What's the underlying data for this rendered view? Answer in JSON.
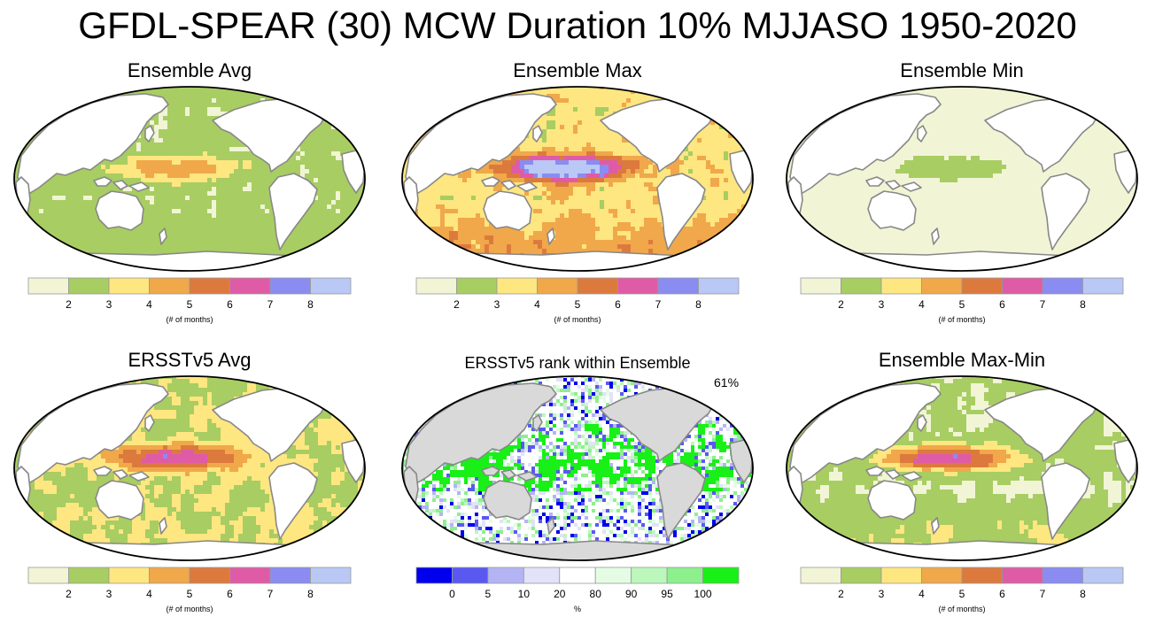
{
  "title": "GFDL-SPEAR (30) MCW Duration 10% MJJASO 1950-2020",
  "colors": {
    "duration": [
      "#f1f5d6",
      "#a8cd62",
      "#fee680",
      "#f0a84a",
      "#dc7a3e",
      "#e05ba6",
      "#8a8cf2",
      "#b9c8f5"
    ],
    "rank": [
      "#0000ee",
      "#5959f2",
      "#b4b4f4",
      "#e2e2f8",
      "#ffffff",
      "#e4fce4",
      "#bcf7bc",
      "#8df08d",
      "#18f018"
    ],
    "land": "#ffffff",
    "coast": "#888888",
    "rank_land": "#d9d9d9"
  },
  "duration_colorbar": {
    "ticks": [
      "2",
      "3",
      "4",
      "5",
      "6",
      "7",
      "8"
    ],
    "unit": "(# of months)"
  },
  "rank_colorbar": {
    "ticks": [
      "0",
      "5",
      "10",
      "20",
      "80",
      "90",
      "95",
      "100"
    ],
    "unit": "%"
  },
  "panels": [
    {
      "id": "ens-avg",
      "title": "Ensemble Avg",
      "colorbar": "duration"
    },
    {
      "id": "ens-max",
      "title": "Ensemble Max",
      "colorbar": "duration"
    },
    {
      "id": "ens-min",
      "title": "Ensemble Min",
      "colorbar": "duration"
    },
    {
      "id": "ersst-avg",
      "title": "ERSSTv5 Avg",
      "colorbar": "duration"
    },
    {
      "id": "ersst-rank",
      "title": "ERSSTv5 rank within Ensemble",
      "colorbar": "rank",
      "percent_label": "61%"
    },
    {
      "id": "ens-maxmin",
      "title": "Ensemble Max-Min",
      "colorbar": "duration"
    }
  ],
  "chart_data": [
    {
      "type": "heatmap",
      "title": "Ensemble Avg",
      "colorbar_ticks": [
        2,
        3,
        4,
        5,
        6,
        7,
        8
      ],
      "colorbar_label": "(# of months)",
      "description_values": {
        "background_level_months": 2,
        "tropical_pacific_peak_months": 4
      }
    },
    {
      "type": "heatmap",
      "title": "Ensemble Max",
      "colorbar_ticks": [
        2,
        3,
        4,
        5,
        6,
        7,
        8
      ],
      "colorbar_label": "(# of months)",
      "description_values": {
        "background_level_months": 3,
        "tropical_pacific_peak_months": 8
      }
    },
    {
      "type": "heatmap",
      "title": "Ensemble Min",
      "colorbar_ticks": [
        2,
        3,
        4,
        5,
        6,
        7,
        8
      ],
      "colorbar_label": "(# of months)",
      "description_values": {
        "background_level_months": 2,
        "tropical_pacific_peak_months": 3
      }
    },
    {
      "type": "heatmap",
      "title": "ERSSTv5 Avg",
      "colorbar_ticks": [
        2,
        3,
        4,
        5,
        6,
        7,
        8
      ],
      "colorbar_label": "(# of months)",
      "description_values": {
        "background_level_months": 3,
        "tropical_pacific_peak_months": 7
      }
    },
    {
      "type": "heatmap",
      "title": "ERSSTv5 rank within Ensemble",
      "colorbar_ticks": [
        0,
        5,
        10,
        20,
        80,
        90,
        95,
        100
      ],
      "colorbar_label": "%",
      "percent_in_range": 61
    },
    {
      "type": "heatmap",
      "title": "Ensemble Max-Min",
      "colorbar_ticks": [
        2,
        3,
        4,
        5,
        6,
        7,
        8
      ],
      "colorbar_label": "(# of months)",
      "description_values": {
        "background_level_months": 2,
        "tropical_pacific_peak_months": 7
      }
    }
  ]
}
